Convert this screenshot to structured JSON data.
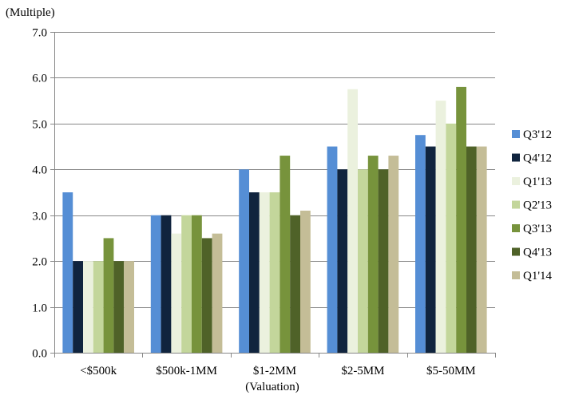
{
  "chart_data": {
    "type": "bar",
    "ylabel": "(Multiple)",
    "xlabel": "(Valuation)",
    "ylim": [
      0,
      7
    ],
    "ytick_step": 1,
    "grid": true,
    "legend_position": "right",
    "categories": [
      "<$500k",
      "$500k-1MM",
      "$1-2MM",
      "$2-5MM",
      "$5-50MM"
    ],
    "series": [
      {
        "name": "Q3'12",
        "color": "#558ed5",
        "values": [
          3.5,
          3.0,
          4.0,
          4.5,
          4.75
        ]
      },
      {
        "name": "Q4'12",
        "color": "#10243e",
        "values": [
          2.0,
          3.0,
          3.5,
          4.0,
          4.5
        ]
      },
      {
        "name": "Q1'13",
        "color": "#ebf1de",
        "values": [
          2.0,
          2.6,
          3.5,
          5.75,
          5.5
        ]
      },
      {
        "name": "Q2'13",
        "color": "#c3d69b",
        "values": [
          2.0,
          3.0,
          3.5,
          4.0,
          5.0
        ]
      },
      {
        "name": "Q3'13",
        "color": "#77933c",
        "values": [
          2.5,
          3.0,
          4.3,
          4.3,
          5.8
        ]
      },
      {
        "name": "Q4'13",
        "color": "#4f6228",
        "values": [
          2.0,
          2.5,
          3.0,
          4.0,
          4.5
        ]
      },
      {
        "name": "Q1'14",
        "color": "#c4bd97",
        "values": [
          2.0,
          2.6,
          3.1,
          4.3,
          4.5
        ]
      }
    ]
  }
}
